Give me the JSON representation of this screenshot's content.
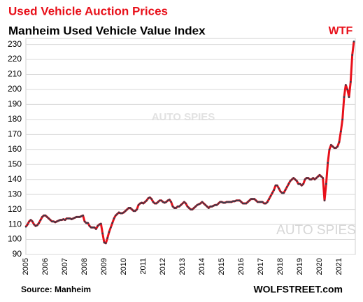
{
  "chart_data": {
    "type": "line",
    "title": "Used Vehicle Auction Prices",
    "subtitle": "Manheim Used Vehicle Value Index",
    "annotation": "WTF",
    "source": "Source: Manheim",
    "credit": "WOLFSTREET.com",
    "watermark": "AUTO SPIES",
    "color": "#e8101a",
    "marker_color": "#3a3a4a",
    "grid": true,
    "ylim": [
      90,
      234
    ],
    "yticks": [
      90,
      100,
      110,
      120,
      130,
      140,
      150,
      160,
      170,
      180,
      190,
      200,
      210,
      220,
      230
    ],
    "categories": [
      "2005",
      null,
      null,
      null,
      null,
      null,
      null,
      null,
      null,
      null,
      null,
      null,
      "2006",
      null,
      null,
      null,
      null,
      null,
      null,
      null,
      null,
      null,
      null,
      null,
      "2007",
      null,
      null,
      null,
      null,
      null,
      null,
      null,
      null,
      null,
      null,
      null,
      "2008",
      null,
      null,
      null,
      null,
      null,
      null,
      null,
      null,
      null,
      null,
      null,
      "2009",
      null,
      null,
      null,
      null,
      null,
      null,
      null,
      null,
      null,
      null,
      null,
      "2010",
      null,
      null,
      null,
      null,
      null,
      null,
      null,
      null,
      null,
      null,
      null,
      "2011",
      null,
      null,
      null,
      null,
      null,
      null,
      null,
      null,
      null,
      null,
      null,
      "2012",
      null,
      null,
      null,
      null,
      null,
      null,
      null,
      null,
      null,
      null,
      null,
      "2013",
      null,
      null,
      null,
      null,
      null,
      null,
      null,
      null,
      null,
      null,
      null,
      "2014",
      null,
      null,
      null,
      null,
      null,
      null,
      null,
      null,
      null,
      null,
      null,
      "2015",
      null,
      null,
      null,
      null,
      null,
      null,
      null,
      null,
      null,
      null,
      null,
      "2016",
      null,
      null,
      null,
      null,
      null,
      null,
      null,
      null,
      null,
      null,
      null,
      "2017",
      null,
      null,
      null,
      null,
      null,
      null,
      null,
      null,
      null,
      null,
      null,
      "2018",
      null,
      null,
      null,
      null,
      null,
      null,
      null,
      null,
      null,
      null,
      null,
      "2019",
      null,
      null,
      null,
      null,
      null,
      null,
      null,
      null,
      null,
      null,
      null,
      "2020",
      null,
      null,
      null,
      null,
      null,
      null,
      null,
      null,
      null,
      null,
      null,
      "2021",
      null,
      null,
      null,
      null,
      null,
      null,
      null,
      null,
      null
    ],
    "values": [
      108.5,
      110,
      112,
      113,
      112,
      110,
      109,
      109.5,
      111,
      113,
      115,
      116,
      116,
      115,
      114,
      113,
      112,
      112,
      111.5,
      112,
      112.5,
      113,
      113,
      113.5,
      113,
      114,
      114,
      114,
      113.5,
      114,
      114.5,
      115,
      115,
      115,
      115.5,
      116,
      112,
      111,
      111,
      109,
      108,
      108,
      108,
      107,
      109,
      110,
      110.5,
      104,
      98,
      97.5,
      101,
      105,
      108,
      111,
      114,
      116,
      117,
      118,
      117.5,
      117.5,
      118,
      119,
      120,
      121,
      121,
      120,
      119,
      119,
      120,
      123,
      124,
      124.5,
      124,
      125,
      126,
      127.5,
      128,
      127,
      125,
      124,
      124,
      125,
      126,
      126,
      125,
      124.5,
      125,
      126,
      126.5,
      125,
      122,
      121,
      121,
      122,
      122,
      123,
      124,
      125,
      124,
      122,
      121,
      120,
      120,
      121,
      122,
      123,
      123.5,
      124,
      125,
      124,
      123,
      122,
      121,
      122,
      122,
      122.5,
      123,
      123,
      124,
      125,
      125,
      124.5,
      124.5,
      125,
      125,
      125,
      125,
      125.5,
      125.5,
      126,
      126,
      126,
      125,
      124,
      124,
      124,
      125,
      126,
      127,
      127,
      127,
      126,
      125,
      125,
      125,
      125,
      124,
      124,
      125,
      127,
      129,
      131,
      133,
      136,
      136,
      134,
      132,
      131,
      131,
      133,
      135,
      137,
      139,
      140,
      141,
      140,
      139,
      137,
      137,
      136,
      137,
      140,
      141,
      141,
      140,
      140,
      141,
      140,
      141,
      142,
      143,
      142,
      141,
      126,
      137,
      151,
      160,
      163,
      162,
      161,
      161,
      162,
      165,
      172,
      180,
      195,
      203,
      200,
      195,
      205,
      223,
      232
    ]
  }
}
